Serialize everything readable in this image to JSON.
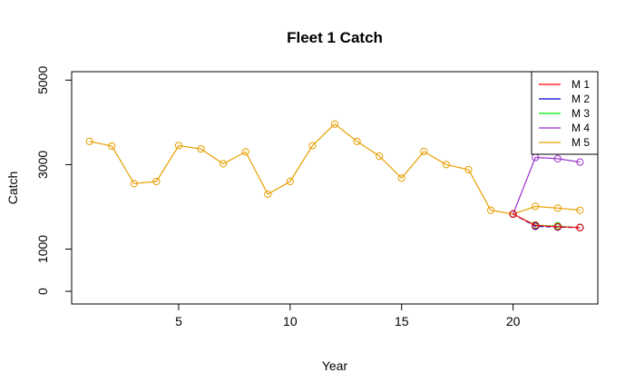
{
  "chart_data": {
    "type": "line",
    "title": "Fleet 1 Catch",
    "xlabel": "Year",
    "ylabel": "Catch",
    "xlim": [
      0.2,
      23.8
    ],
    "ylim": [
      -300,
      5200
    ],
    "xticks": [
      5,
      10,
      15,
      20
    ],
    "yticks": [
      0,
      1000,
      3000,
      5000
    ],
    "grid": false,
    "legend_position": "top-right",
    "series": [
      {
        "name": "M 5",
        "color": "#E69F00",
        "style": "solid",
        "points": [
          [
            1,
            3550
          ],
          [
            2,
            3440
          ],
          [
            3,
            2550
          ],
          [
            4,
            2600
          ],
          [
            5,
            3450
          ],
          [
            6,
            3370
          ],
          [
            7,
            3020
          ],
          [
            8,
            3300
          ],
          [
            9,
            2300
          ],
          [
            10,
            2600
          ],
          [
            11,
            3450
          ],
          [
            12,
            3960
          ],
          [
            13,
            3550
          ],
          [
            14,
            3200
          ],
          [
            15,
            2680
          ],
          [
            16,
            3310
          ],
          [
            17,
            3000
          ],
          [
            18,
            2880
          ],
          [
            19,
            1920
          ],
          [
            20,
            1830
          ],
          [
            21,
            2010
          ],
          [
            22,
            1970
          ],
          [
            23,
            1920
          ]
        ]
      },
      {
        "name": "M 4",
        "color": "#9A32CD",
        "style": "solid",
        "points": [
          [
            20,
            1830
          ],
          [
            21,
            3170
          ],
          [
            22,
            3140
          ],
          [
            23,
            3060
          ]
        ]
      },
      {
        "name": "M 3",
        "color": "#00EE00",
        "style": "dotted",
        "points": [
          [
            20,
            1830
          ],
          [
            21,
            1570
          ],
          [
            22,
            1550
          ],
          [
            23,
            1510
          ]
        ]
      },
      {
        "name": "M 2",
        "color": "#0000CD",
        "style": "dashed",
        "points": [
          [
            20,
            1830
          ],
          [
            21,
            1540
          ],
          [
            22,
            1520
          ],
          [
            23,
            1510
          ]
        ]
      },
      {
        "name": "M 1",
        "color": "#FF0000",
        "style": "solid",
        "points": [
          [
            20,
            1830
          ],
          [
            21,
            1560
          ],
          [
            22,
            1530
          ],
          [
            23,
            1510
          ]
        ]
      }
    ],
    "legend": [
      {
        "label": "M 1",
        "color": "#FF0000"
      },
      {
        "label": "M 2",
        "color": "#0000CD"
      },
      {
        "label": "M 3",
        "color": "#00EE00"
      },
      {
        "label": "M 4",
        "color": "#9A32CD"
      },
      {
        "label": "M 5",
        "color": "#E69F00"
      }
    ]
  }
}
